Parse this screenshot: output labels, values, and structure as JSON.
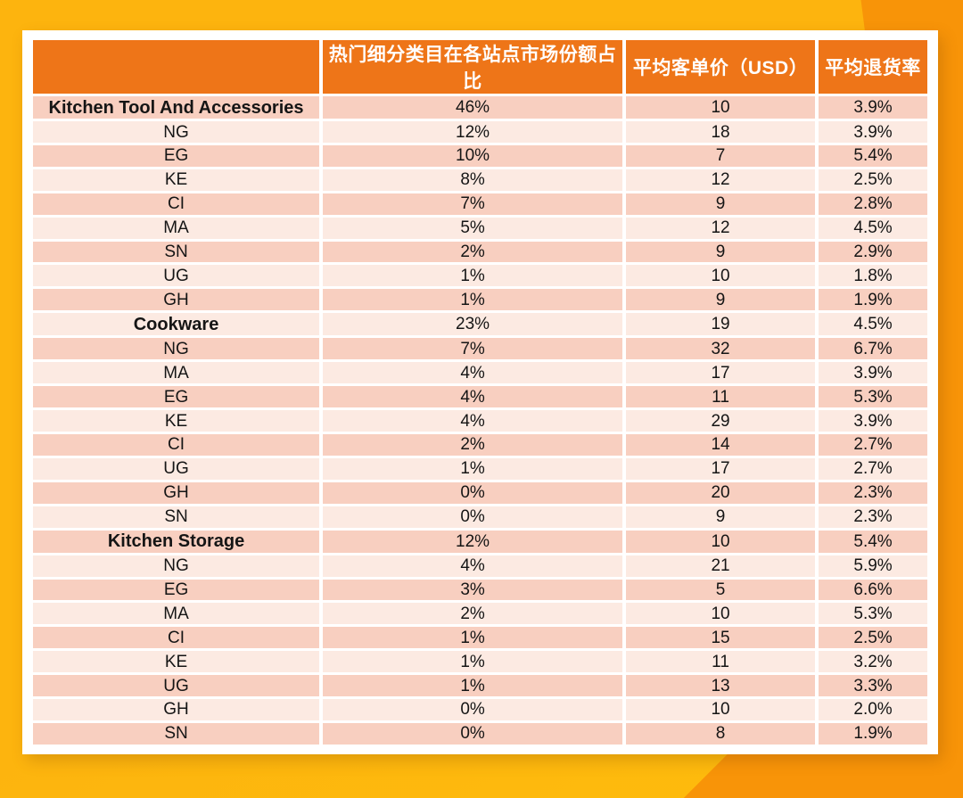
{
  "colors": {
    "background_gold": "#FDB40E",
    "background_orange": "#F89408",
    "header_bg": "#EE7518",
    "header_text": "#FFFFFF",
    "row_dark": "#F8CFC0",
    "row_light": "#FCEAE2",
    "text": "#151515"
  },
  "chart_data": {
    "type": "table",
    "columns": [
      "",
      "热门细分类目在各站点市场份额占比",
      "平均客单价（USD）",
      "平均退货率"
    ],
    "rows": [
      {
        "type": "category",
        "label": "Kitchen Tool And Accessories",
        "market_share": "46%",
        "avg_price_usd": "10",
        "return_rate": "3.9%"
      },
      {
        "type": "site",
        "label": "NG",
        "market_share": "12%",
        "avg_price_usd": "18",
        "return_rate": "3.9%"
      },
      {
        "type": "site",
        "label": "EG",
        "market_share": "10%",
        "avg_price_usd": "7",
        "return_rate": "5.4%"
      },
      {
        "type": "site",
        "label": "KE",
        "market_share": "8%",
        "avg_price_usd": "12",
        "return_rate": "2.5%"
      },
      {
        "type": "site",
        "label": "CI",
        "market_share": "7%",
        "avg_price_usd": "9",
        "return_rate": "2.8%"
      },
      {
        "type": "site",
        "label": "MA",
        "market_share": "5%",
        "avg_price_usd": "12",
        "return_rate": "4.5%"
      },
      {
        "type": "site",
        "label": "SN",
        "market_share": "2%",
        "avg_price_usd": "9",
        "return_rate": "2.9%"
      },
      {
        "type": "site",
        "label": "UG",
        "market_share": "1%",
        "avg_price_usd": "10",
        "return_rate": "1.8%"
      },
      {
        "type": "site",
        "label": "GH",
        "market_share": "1%",
        "avg_price_usd": "9",
        "return_rate": "1.9%"
      },
      {
        "type": "category",
        "label": "Cookware",
        "market_share": "23%",
        "avg_price_usd": "19",
        "return_rate": "4.5%"
      },
      {
        "type": "site",
        "label": "NG",
        "market_share": "7%",
        "avg_price_usd": "32",
        "return_rate": "6.7%"
      },
      {
        "type": "site",
        "label": "MA",
        "market_share": "4%",
        "avg_price_usd": "17",
        "return_rate": "3.9%"
      },
      {
        "type": "site",
        "label": "EG",
        "market_share": "4%",
        "avg_price_usd": "11",
        "return_rate": "5.3%"
      },
      {
        "type": "site",
        "label": "KE",
        "market_share": "4%",
        "avg_price_usd": "29",
        "return_rate": "3.9%"
      },
      {
        "type": "site",
        "label": "CI",
        "market_share": "2%",
        "avg_price_usd": "14",
        "return_rate": "2.7%"
      },
      {
        "type": "site",
        "label": "UG",
        "market_share": "1%",
        "avg_price_usd": "17",
        "return_rate": "2.7%"
      },
      {
        "type": "site",
        "label": "GH",
        "market_share": "0%",
        "avg_price_usd": "20",
        "return_rate": "2.3%"
      },
      {
        "type": "site",
        "label": "SN",
        "market_share": "0%",
        "avg_price_usd": "9",
        "return_rate": "2.3%"
      },
      {
        "type": "category",
        "label": "Kitchen Storage",
        "market_share": "12%",
        "avg_price_usd": "10",
        "return_rate": "5.4%"
      },
      {
        "type": "site",
        "label": "NG",
        "market_share": "4%",
        "avg_price_usd": "21",
        "return_rate": "5.9%"
      },
      {
        "type": "site",
        "label": "EG",
        "market_share": "3%",
        "avg_price_usd": "5",
        "return_rate": "6.6%"
      },
      {
        "type": "site",
        "label": "MA",
        "market_share": "2%",
        "avg_price_usd": "10",
        "return_rate": "5.3%"
      },
      {
        "type": "site",
        "label": "CI",
        "market_share": "1%",
        "avg_price_usd": "15",
        "return_rate": "2.5%"
      },
      {
        "type": "site",
        "label": "KE",
        "market_share": "1%",
        "avg_price_usd": "11",
        "return_rate": "3.2%"
      },
      {
        "type": "site",
        "label": "UG",
        "market_share": "1%",
        "avg_price_usd": "13",
        "return_rate": "3.3%"
      },
      {
        "type": "site",
        "label": "GH",
        "market_share": "0%",
        "avg_price_usd": "10",
        "return_rate": "2.0%"
      },
      {
        "type": "site",
        "label": "SN",
        "market_share": "0%",
        "avg_price_usd": "8",
        "return_rate": "1.9%"
      }
    ]
  }
}
